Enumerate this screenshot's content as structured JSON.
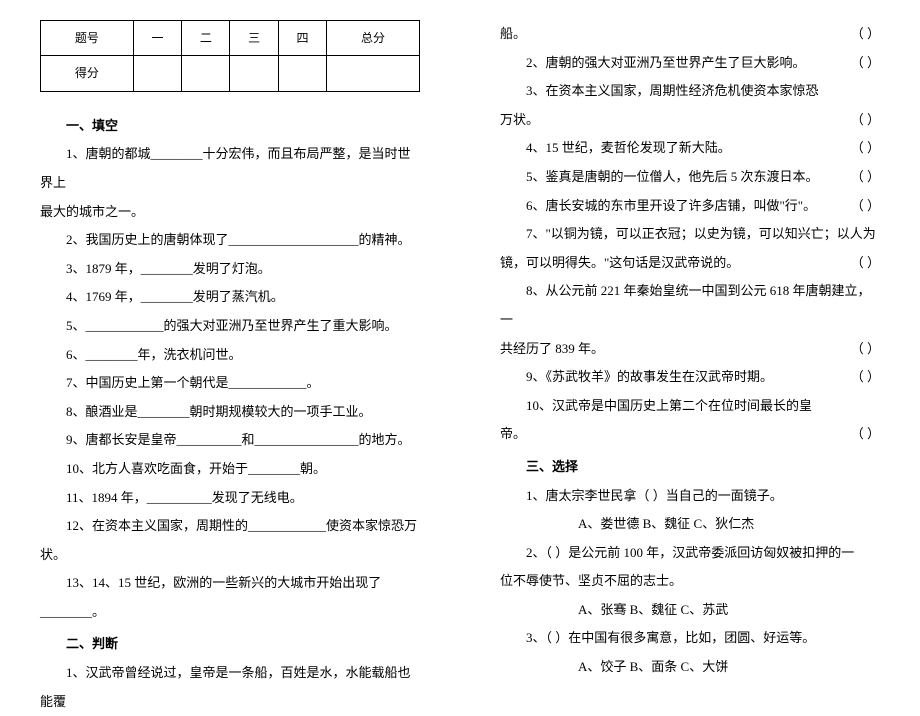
{
  "table": {
    "header": [
      "题号",
      "一",
      "二",
      "三",
      "四",
      "总分"
    ],
    "row2_label": "得分"
  },
  "sections": {
    "s1": "一、填空",
    "s2": "二、判断",
    "s3": "三、选择"
  },
  "fill": {
    "q1a": "1、唐朝的都城________十分宏伟，而且布局严整，是当时世界上",
    "q1b": "最大的城市之一。",
    "q2": "2、我国历史上的唐朝体现了____________________的精神。",
    "q3": "3、1879 年，________发明了灯泡。",
    "q4": "4、1769 年，________发明了蒸汽机。",
    "q5": "5、____________的强大对亚洲乃至世界产生了重大影响。",
    "q6": "6、________年，洗衣机问世。",
    "q7": "7、中国历史上第一个朝代是____________。",
    "q8": "8、酿酒业是________朝时期规模较大的一项手工业。",
    "q9": "9、唐都长安是皇帝__________和________________的地方。",
    "q10": "10、北方人喜欢吃面食，开始于________朝。",
    "q11": "11、1894 年，__________发现了无线电。",
    "q12": "12、在资本主义国家，周期性的____________使资本家惊恐万状。",
    "q13": "13、14、15 世纪，欧洲的一些新兴的大城市开始出现了________。"
  },
  "judge": {
    "q1a": "1、汉武帝曾经说过，皇帝是一条船，百姓是水，水能载船也能覆",
    "q1b": "船。",
    "q2": "2、唐朝的强大对亚洲乃至世界产生了巨大影响。",
    "q3": "3、在资本主义国家，周期性经济危机使资本家惊恐万状。",
    "q4": "4、15 世纪，麦哲伦发现了新大陆。",
    "q5": "5、鉴真是唐朝的一位僧人，他先后 5 次东渡日本。",
    "q6": "6、唐长安城的东市里开设了许多店铺，叫做\"行\"。",
    "q7a": "7、\"以铜为镜，可以正衣冠；以史为镜，可以知兴亡；以人为",
    "q7b": "镜，可以明得失。\"这句话是汉武帝说的。",
    "q8a": "8、从公元前 221 年秦始皇统一中国到公元 618 年唐朝建立，一",
    "q8b": "共经历了 839 年。",
    "q9": "9、《苏武牧羊》的故事发生在汉武帝时期。",
    "q10": "10、汉武帝是中国历史上第二个在位时间最长的皇帝。",
    "paren": "（     ）"
  },
  "choice": {
    "q1": "1、唐太宗李世民拿（     ）当自己的一面镜子。",
    "q1opts": "A、娄世德      B、魏征      C、狄仁杰",
    "q2a": "2、（     ）是公元前 100 年，汉武帝委派回访匈奴被扣押的一",
    "q2b": "位不辱使节、坚贞不屈的志士。",
    "q2opts": "A、张骞      B、魏征      C、苏武",
    "q3": "3、（     ）在中国有很多寓意，比如，团圆、好运等。",
    "q3opts": "A、饺子      B、面条      C、大饼"
  }
}
